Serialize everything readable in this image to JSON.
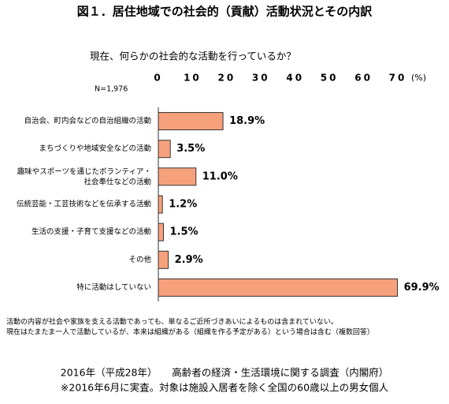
{
  "chart_data": {
    "type": "bar",
    "orientation": "horizontal",
    "title": "図１．居住地域での社会的（貢献）活動状況とその内訳",
    "subtitle": "現在、何らかの社会的な活動を行っているか？",
    "sample_size": "N=1,976",
    "x_unit": "(%)",
    "categories": [
      "自治会、町内会などの自治組織の活動",
      "まちづくりや地域安全などの活動",
      "趣味やスポーツを通じたボランティア・\n社会奉仕などの活動",
      "伝統芸能・工芸技術などを伝承する活動",
      "生活の支援・子育て支援などの活動",
      "その他",
      "特に活動はしていない"
    ],
    "values": [
      18.9,
      3.5,
      11.0,
      1.2,
      1.5,
      2.9,
      69.9
    ],
    "value_labels": [
      "18.9%",
      "3.5%",
      "11.0%",
      "1.2%",
      "1.5%",
      "2.9%",
      "69.9%"
    ],
    "color": "#f6a17c",
    "xlim": [
      0,
      70
    ],
    "xticks": [
      0,
      10,
      20,
      30,
      40,
      50,
      60,
      70
    ],
    "notes": [
      "活動の内容が社会や家族を支える活動であっても、単なるご近所づきあいによるものは含まれていない。",
      "現在はたまたま一人で活動しているが、本来は組織がある（組織を作る予定がある）という場合は含む（複数回答）"
    ],
    "source": [
      "2016年（平成28年）　　高齢者の経済・生活環境に関する調査（内閣府）",
      "※2016年6月に実査。対象は施設入居者を除く全国の60歳以上の男女個人"
    ]
  }
}
